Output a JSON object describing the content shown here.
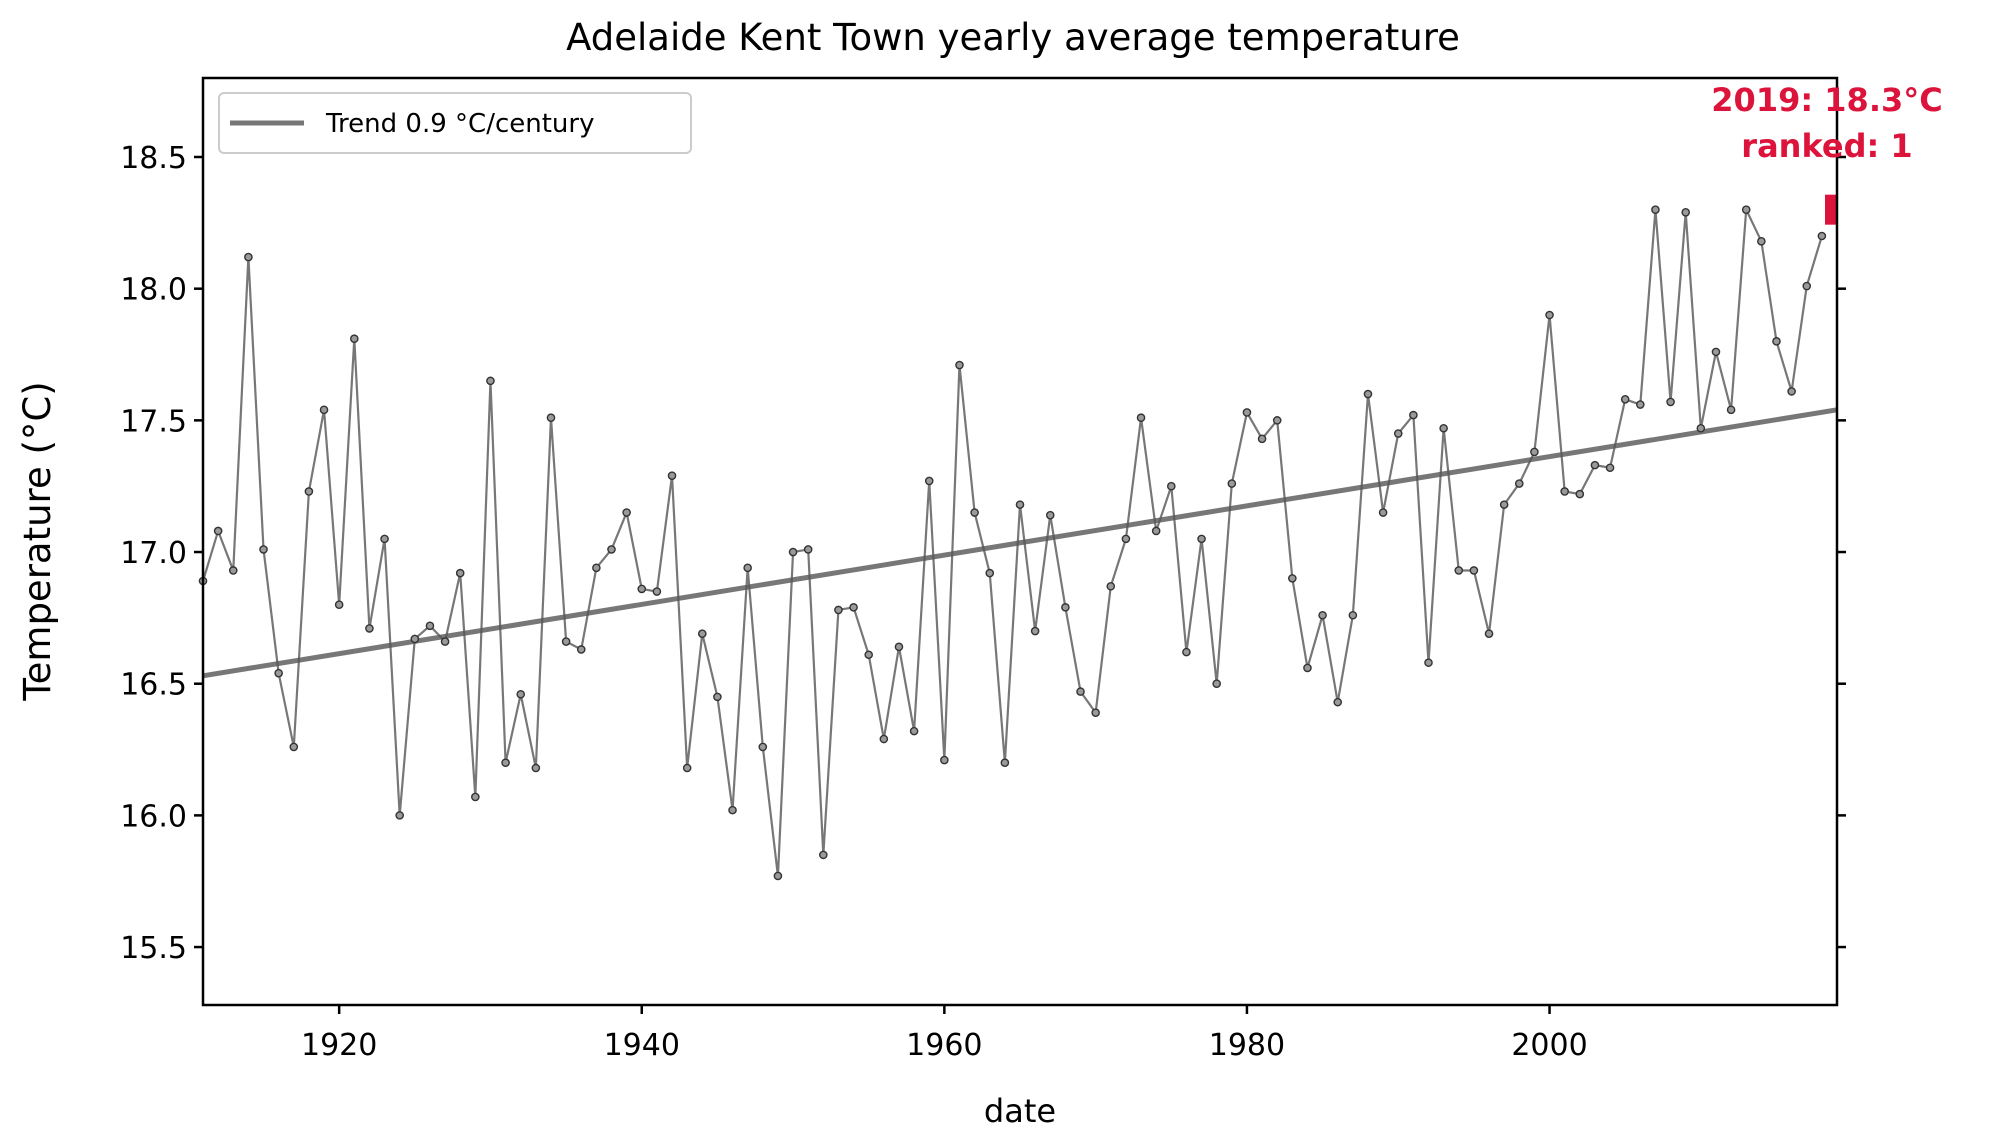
{
  "chart_data": {
    "type": "line",
    "title": "Adelaide Kent Town yearly average temperature",
    "xlabel": "date",
    "ylabel": "Temperature (°C)",
    "xlim": [
      1911,
      2019
    ],
    "ylim": [
      15.28,
      18.8
    ],
    "x_ticks": [
      1920,
      1940,
      1960,
      1980,
      2000
    ],
    "y_ticks": [
      15.5,
      16.0,
      16.5,
      17.0,
      17.5,
      18.0,
      18.5
    ],
    "grid": false,
    "legend_position": "top-left",
    "colors": {
      "series": "#555555",
      "trend": "#555555",
      "highlight": "#dc143c"
    },
    "series": [
      {
        "name": "",
        "x": [
          1911,
          1912,
          1913,
          1914,
          1915,
          1916,
          1917,
          1918,
          1919,
          1920,
          1921,
          1922,
          1923,
          1924,
          1925,
          1926,
          1927,
          1928,
          1929,
          1930,
          1931,
          1932,
          1933,
          1934,
          1935,
          1936,
          1937,
          1938,
          1939,
          1940,
          1941,
          1942,
          1943,
          1944,
          1945,
          1946,
          1947,
          1948,
          1949,
          1950,
          1951,
          1952,
          1953,
          1954,
          1955,
          1956,
          1957,
          1958,
          1959,
          1960,
          1961,
          1962,
          1963,
          1964,
          1965,
          1966,
          1967,
          1968,
          1969,
          1970,
          1971,
          1972,
          1973,
          1974,
          1975,
          1976,
          1977,
          1978,
          1979,
          1980,
          1981,
          1982,
          1983,
          1984,
          1985,
          1986,
          1987,
          1988,
          1989,
          1990,
          1991,
          1992,
          1993,
          1994,
          1995,
          1996,
          1997,
          1998,
          1999,
          2000,
          2001,
          2002,
          2003,
          2004,
          2005,
          2006,
          2007,
          2008,
          2009,
          2010,
          2011,
          2012,
          2013,
          2014,
          2015,
          2016,
          2017,
          2018
        ],
        "y": [
          16.89,
          17.08,
          16.93,
          18.12,
          17.01,
          16.54,
          16.26,
          17.23,
          17.54,
          16.8,
          17.81,
          16.71,
          17.05,
          16.0,
          16.67,
          16.72,
          16.66,
          16.92,
          16.07,
          17.65,
          16.2,
          16.46,
          16.18,
          17.51,
          16.66,
          16.63,
          16.94,
          17.01,
          17.15,
          16.86,
          16.85,
          17.29,
          16.18,
          16.69,
          16.45,
          16.02,
          16.94,
          16.26,
          15.77,
          17.0,
          17.01,
          15.85,
          16.78,
          16.79,
          16.61,
          16.29,
          16.64,
          16.32,
          17.27,
          16.21,
          17.71,
          17.15,
          16.92,
          16.2,
          17.18,
          16.7,
          17.14,
          16.79,
          16.47,
          16.39,
          16.87,
          17.05,
          17.51,
          17.08,
          17.25,
          16.62,
          17.05,
          16.5,
          17.26,
          17.53,
          17.43,
          17.5,
          16.9,
          16.56,
          16.76,
          16.43,
          16.76,
          17.6,
          17.15,
          17.45,
          17.52,
          16.58,
          17.47,
          16.93,
          16.93,
          16.69,
          17.18,
          17.26,
          17.38,
          17.9,
          17.23,
          17.22,
          17.33,
          17.32,
          17.58,
          17.56,
          18.3,
          17.57,
          18.29,
          17.47,
          17.76,
          17.54,
          18.3,
          18.18,
          17.8,
          17.61,
          18.01,
          18.2
        ]
      }
    ],
    "trend": {
      "label": "Trend 0.9 °C/century",
      "x": [
        1911,
        2019
      ],
      "y": [
        16.53,
        17.54
      ]
    },
    "highlight": {
      "x": 2019,
      "y": 18.3,
      "line1": "2019: 18.3°C",
      "line2": "ranked: 1"
    }
  }
}
